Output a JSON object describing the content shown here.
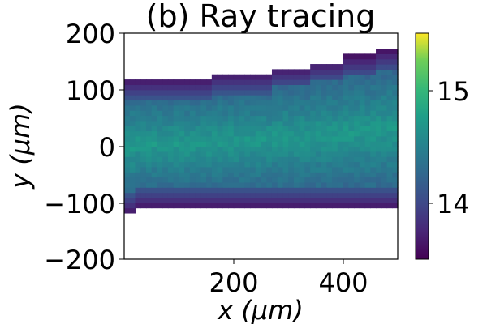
{
  "chart_data": {
    "type": "heatmap",
    "title": "(b) Ray tracing",
    "xlabel": "x (μm)",
    "ylabel": "y (μm)",
    "xlim": [
      0,
      500
    ],
    "ylim": [
      -200,
      200
    ],
    "x_ticks": [
      "200",
      "400"
    ],
    "x_tick_values": [
      200,
      400
    ],
    "y_ticks": [
      "200",
      "100",
      "0",
      "−100",
      "−200"
    ],
    "y_tick_values": [
      200,
      100,
      0,
      -100,
      -200
    ],
    "colorbar": {
      "range": [
        13.5,
        15.5
      ],
      "ticks": [
        "15",
        "14"
      ],
      "tick_values": [
        15,
        14
      ],
      "colormap": "viridis"
    },
    "beam_edges": {
      "x": [
        0,
        60,
        100,
        200,
        300,
        400,
        500
      ],
      "y_top": [
        125,
        120,
        120,
        128,
        138,
        155,
        173
      ],
      "y_bottom": [
        -118,
        -108,
        -108,
        -108,
        -108,
        -108,
        -108
      ]
    },
    "background_value": 13.6,
    "core_value": 14.7,
    "edge_value": 13.6
  }
}
